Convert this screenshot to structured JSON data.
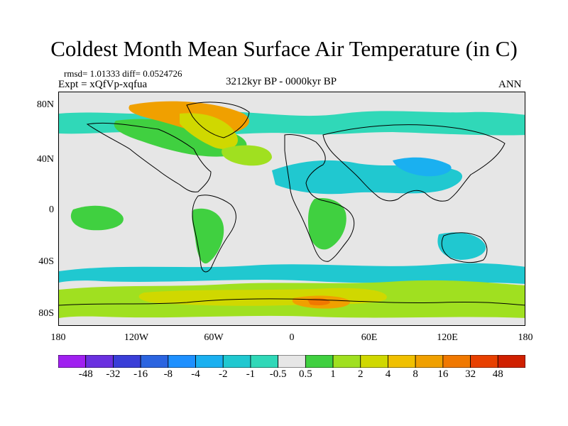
{
  "title": "Coldest Month Mean Surface Air Temperature (in C)",
  "stats_line": "rmsd= 1.01333 diff= 0.0524726",
  "expt_line": "Expt = xQfVp-xqfua",
  "period_line": "3212kyr BP - 0000kyr BP",
  "season_label": "ANN",
  "map": {
    "background_color": "#e6e6e6",
    "lat_ticks": [
      "80N",
      "40N",
      "0",
      "40S",
      "80S"
    ],
    "lon_ticks": [
      "180",
      "120W",
      "60W",
      "0",
      "60E",
      "120E",
      "180"
    ]
  },
  "colorbar": {
    "labels": [
      "-48",
      "-32",
      "-16",
      "-8",
      "-4",
      "-2",
      "-1",
      "-0.5",
      "0.5",
      "1",
      "2",
      "4",
      "8",
      "16",
      "32",
      "48"
    ],
    "colors": [
      "#a020f0",
      "#6a30e0",
      "#3a3ed8",
      "#2b64e0",
      "#1e90ff",
      "#1ab0f0",
      "#20c8d0",
      "#30d8b8",
      "#e6e6e6",
      "#40d040",
      "#a0e020",
      "#d0d800",
      "#f0c000",
      "#f0a000",
      "#f07800",
      "#e84000",
      "#d02000"
    ]
  }
}
